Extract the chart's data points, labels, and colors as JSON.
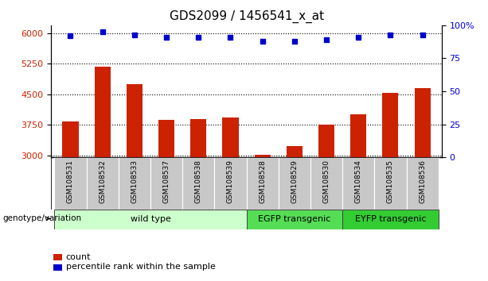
{
  "title": "GDS2099 / 1456541_x_at",
  "samples": [
    "GSM108531",
    "GSM108532",
    "GSM108533",
    "GSM108537",
    "GSM108538",
    "GSM108539",
    "GSM108528",
    "GSM108529",
    "GSM108530",
    "GSM108534",
    "GSM108535",
    "GSM108536"
  ],
  "counts": [
    3830,
    5180,
    4760,
    3870,
    3900,
    3940,
    3020,
    3220,
    3760,
    4000,
    4530,
    4660
  ],
  "percentiles": [
    92,
    95,
    93,
    91,
    91,
    91,
    88,
    88,
    89,
    91,
    93,
    93
  ],
  "groups": [
    {
      "label": "wild type",
      "start": 0,
      "end": 6,
      "color": "#ccffcc"
    },
    {
      "label": "EGFP transgenic",
      "start": 6,
      "end": 9,
      "color": "#55dd55"
    },
    {
      "label": "EYFP transgenic",
      "start": 9,
      "end": 12,
      "color": "#33cc33"
    }
  ],
  "ylim_left": [
    2950,
    6200
  ],
  "ylim_right": [
    0,
    100
  ],
  "yticks_left": [
    3000,
    3750,
    4500,
    5250,
    6000
  ],
  "yticks_right": [
    0,
    25,
    50,
    75,
    100
  ],
  "bar_color": "#cc2200",
  "dot_color": "#0000cc",
  "title_fontsize": 11,
  "tick_label_fontsize": 8,
  "legend_fontsize": 8,
  "bar_bottom": 2950,
  "genotype_label": "genotype/variation"
}
